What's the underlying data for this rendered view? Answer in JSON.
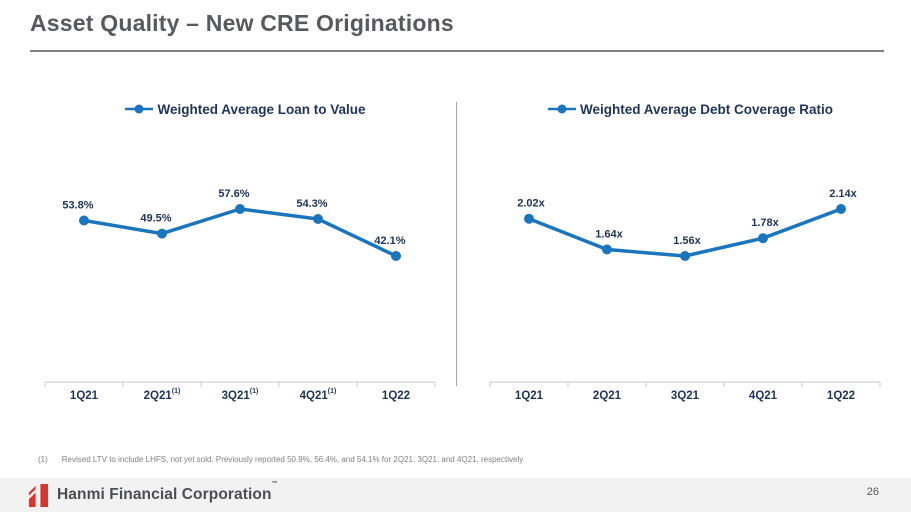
{
  "slide": {
    "title": "Asset Quality – New CRE Originations",
    "page_number": "26",
    "footnote": {
      "marker": "(1)",
      "text": "Revised LTV to include LHFS, not yet sold. Previously reported 50.9%, 56.4%, and 54.1% for 2Q21, 3Q21, and 4Q21, respectively"
    },
    "footer": {
      "brand": "Hanmi Financial Corporation",
      "trademark": "™"
    }
  },
  "colors": {
    "line_blue": "#1B75BC",
    "navy_text": "#1F3458",
    "axis_gray": "#C9C9C9",
    "brand_red": "#D5362F"
  },
  "chart_data": [
    {
      "type": "line",
      "title": "Weighted Average Loan to Value",
      "categories": [
        "1Q21",
        "2Q21",
        "3Q21",
        "4Q21",
        "1Q22"
      ],
      "category_superscripts": [
        "",
        "(1)",
        "(1)",
        "(1)",
        ""
      ],
      "values": [
        53.8,
        49.5,
        57.6,
        54.3,
        42.1
      ],
      "labels": [
        "53.8%",
        "49.5%",
        "57.6%",
        "54.3%",
        "42.1%"
      ],
      "unit": "%",
      "ylim": [
        42.1,
        57.6
      ],
      "grid": false,
      "legend_position": "top"
    },
    {
      "type": "line",
      "title": "Weighted Average Debt Coverage Ratio",
      "categories": [
        "1Q21",
        "2Q21",
        "3Q21",
        "4Q21",
        "1Q22"
      ],
      "category_superscripts": [
        "",
        "",
        "",
        "",
        ""
      ],
      "values": [
        2.02,
        1.64,
        1.56,
        1.78,
        2.14
      ],
      "labels": [
        "2.02x",
        "1.64x",
        "1.56x",
        "1.78x",
        "2.14x"
      ],
      "unit": "x",
      "ylim": [
        1.56,
        2.14
      ],
      "grid": false,
      "legend_position": "top"
    }
  ]
}
